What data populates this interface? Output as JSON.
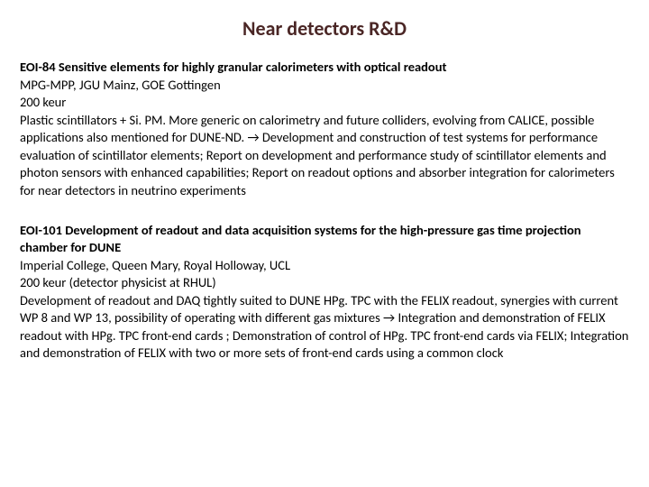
{
  "page_title": "Near detectors R&D",
  "sections": [
    {
      "heading": "EOI-84 Sensitive elements for highly granular calorimeters with optical readout",
      "institutions": "MPG-MPP, JGU Mainz, GOE Gottingen",
      "budget": "200 keur",
      "description": "Plastic scintillators + Si. PM. More generic on calorimetry and future colliders, evolving from CALICE, possible applications also mentioned for DUNE-ND. → Development and construction of test systems for performance evaluation of scintillator elements; Report on development and performance study of scintillator elements and photon sensors with enhanced capabilities; Report on readout options and absorber integration for calorimeters for near detectors in neutrino experiments"
    },
    {
      "heading": "EOI-101 Development of readout and data acquisition systems for the high-pressure gas time projection chamber for DUNE",
      "institutions": "Imperial College, Queen Mary, Royal Holloway, UCL",
      "budget": "200 keur (detector physicist at RHUL)",
      "description": "Development of readout and DAQ tightly suited to DUNE HPg. TPC with the FELIX readout, synergies with current WP 8 and WP 13, possibility of operating with different gas mixtures → Integration and demonstration of FELIX readout with HPg. TPC front-end cards ; Demonstration of control of HPg. TPC front-end cards via FELIX; Integration and demonstration of FELIX with two or more sets of front-end cards using a common clock"
    }
  ],
  "styling": {
    "title_color": "#4a2625",
    "title_fontsize": 22,
    "body_fontsize": 14.5,
    "body_color": "#000000",
    "background_color": "#ffffff"
  }
}
